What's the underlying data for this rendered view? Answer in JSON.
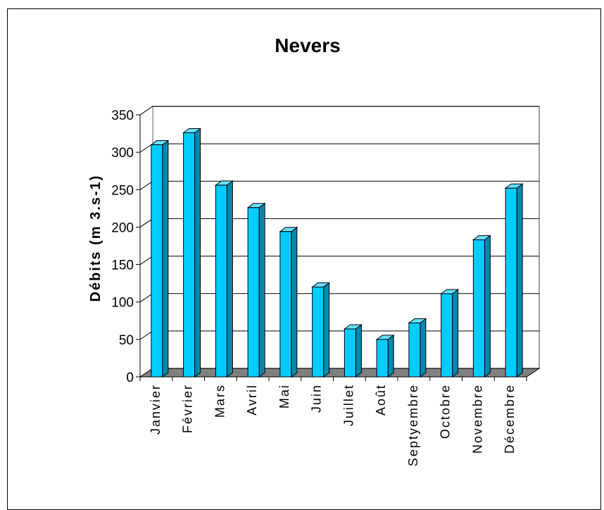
{
  "chart_data": {
    "type": "bar",
    "title": "Nevers",
    "xlabel": "",
    "ylabel": "Débits (m 3.s-1)",
    "ylim": [
      0,
      350
    ],
    "yticks": [
      "0",
      "50",
      "100",
      "150",
      "200",
      "250",
      "300",
      "350"
    ],
    "categories": [
      "Janvier",
      "Février",
      "Mars",
      "Avril",
      "Mai",
      "Juin",
      "Juillet",
      "Août",
      "Septyembre",
      "Octobre",
      "Novembre",
      "Décembre"
    ],
    "values": [
      310,
      326,
      256,
      226,
      194,
      120,
      64,
      50,
      72,
      111,
      183,
      252
    ],
    "grid": true,
    "legend": "none",
    "colors": {
      "bar_front": "#00ccff",
      "bar_side": "#0088b0",
      "bar_top": "#66e0ff",
      "floor": "#808080",
      "outline": "#000000"
    }
  }
}
